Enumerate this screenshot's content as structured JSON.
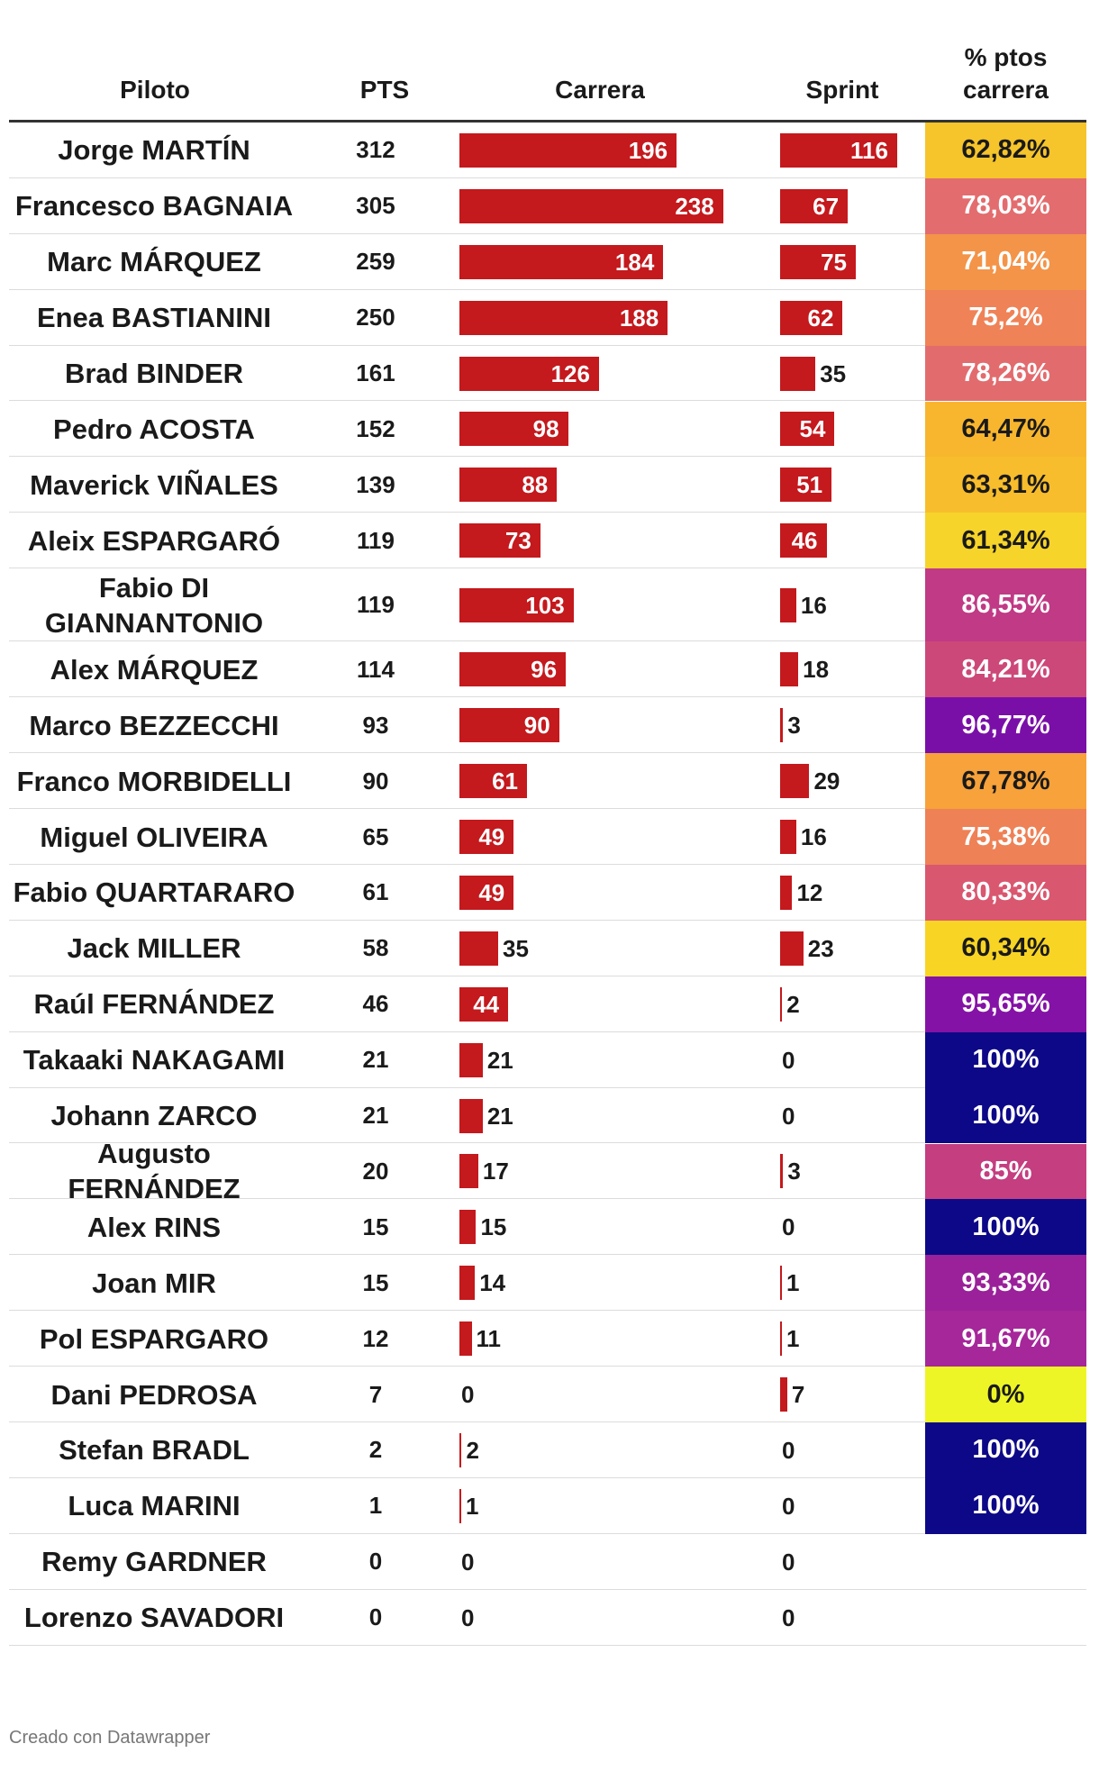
{
  "headers": {
    "piloto": "Piloto",
    "pts": "PTS",
    "carrera": "Carrera",
    "sprint": "Sprint",
    "pct_line1": "% ptos",
    "pct_line2": "carrera"
  },
  "footer": "Creado con Datawrapper",
  "colors": {
    "bar": "#c4191d",
    "header_rule": "#333333",
    "row_separator": "#dcdcdc"
  },
  "chart_data": {
    "type": "table",
    "columns": [
      "Piloto",
      "PTS",
      "Carrera",
      "Sprint",
      "% ptos carrera"
    ],
    "bar_columns": [
      "Carrera",
      "Sprint"
    ],
    "rows": [
      {
        "piloto": "Jorge MARTÍN",
        "pts": 312,
        "carrera": 196,
        "sprint": 116,
        "pct": "62,82%",
        "pct_color": "#f6c42b"
      },
      {
        "piloto": "Francesco BAGNAIA",
        "pts": 305,
        "carrera": 238,
        "sprint": 67,
        "pct": "78,03%",
        "pct_color": "#e36c6e"
      },
      {
        "piloto": "Marc MÁRQUEZ",
        "pts": 259,
        "carrera": 184,
        "sprint": 75,
        "pct": "71,04%",
        "pct_color": "#f39448"
      },
      {
        "piloto": "Enea BASTIANINI",
        "pts": 250,
        "carrera": 188,
        "sprint": 62,
        "pct": "75,2%",
        "pct_color": "#ef8257"
      },
      {
        "piloto": "Brad BINDER",
        "pts": 161,
        "carrera": 126,
        "sprint": 35,
        "pct": "78,26%",
        "pct_color": "#e26b6e"
      },
      {
        "piloto": "Pedro ACOSTA",
        "pts": 152,
        "carrera": 98,
        "sprint": 54,
        "pct": "64,47%",
        "pct_color": "#f8b62e"
      },
      {
        "piloto": "Maverick VIÑALES",
        "pts": 139,
        "carrera": 88,
        "sprint": 51,
        "pct": "63,31%",
        "pct_color": "#f8bd2c"
      },
      {
        "piloto": "Aleix ESPARGARÓ",
        "pts": 119,
        "carrera": 73,
        "sprint": 46,
        "pct": "61,34%",
        "pct_color": "#f6d42a"
      },
      {
        "piloto": "Fabio DI GIANNANTONIO",
        "pts": 119,
        "carrera": 103,
        "sprint": 16,
        "pct": "86,55%",
        "pct_color": "#c03a85"
      },
      {
        "piloto": "Alex MÁRQUEZ",
        "pts": 114,
        "carrera": 96,
        "sprint": 18,
        "pct": "84,21%",
        "pct_color": "#cc4879"
      },
      {
        "piloto": "Marco BEZZECCHI",
        "pts": 93,
        "carrera": 90,
        "sprint": 3,
        "pct": "96,77%",
        "pct_color": "#7a0fa8"
      },
      {
        "piloto": "Franco MORBIDELLI",
        "pts": 90,
        "carrera": 61,
        "sprint": 29,
        "pct": "67,78%",
        "pct_color": "#f7a23a"
      },
      {
        "piloto": "Miguel OLIVEIRA",
        "pts": 65,
        "carrera": 49,
        "sprint": 16,
        "pct": "75,38%",
        "pct_color": "#ee8156"
      },
      {
        "piloto": "Fabio QUARTARARO",
        "pts": 61,
        "carrera": 49,
        "sprint": 12,
        "pct": "80,33%",
        "pct_color": "#d9576f"
      },
      {
        "piloto": "Jack MILLER",
        "pts": 58,
        "carrera": 35,
        "sprint": 23,
        "pct": "60,34%",
        "pct_color": "#f8d524"
      },
      {
        "piloto": "Raúl FERNÁNDEZ",
        "pts": 46,
        "carrera": 44,
        "sprint": 2,
        "pct": "95,65%",
        "pct_color": "#8512a6"
      },
      {
        "piloto": "Takaaki NAKAGAMI",
        "pts": 21,
        "carrera": 21,
        "sprint": 0,
        "pct": "100%",
        "pct_color": "#0d0887"
      },
      {
        "piloto": "Johann ZARCO",
        "pts": 21,
        "carrera": 21,
        "sprint": 0,
        "pct": "100%",
        "pct_color": "#0d0887"
      },
      {
        "piloto": "Augusto FERNÁNDEZ",
        "pts": 20,
        "carrera": 17,
        "sprint": 3,
        "pct": "85%",
        "pct_color": "#c43e80"
      },
      {
        "piloto": "Alex RINS",
        "pts": 15,
        "carrera": 15,
        "sprint": 0,
        "pct": "100%",
        "pct_color": "#0d0887"
      },
      {
        "piloto": "Joan MIR",
        "pts": 15,
        "carrera": 14,
        "sprint": 1,
        "pct": "93,33%",
        "pct_color": "#9a2199"
      },
      {
        "piloto": "Pol ESPARGARO",
        "pts": 12,
        "carrera": 11,
        "sprint": 1,
        "pct": "91,67%",
        "pct_color": "#a5279a"
      },
      {
        "piloto": "Dani PEDROSA",
        "pts": 7,
        "carrera": 0,
        "sprint": 7,
        "pct": "0%",
        "pct_color": "#eef526"
      },
      {
        "piloto": "Stefan BRADL",
        "pts": 2,
        "carrera": 2,
        "sprint": 0,
        "pct": "100%",
        "pct_color": "#0d0887"
      },
      {
        "piloto": "Luca MARINI",
        "pts": 1,
        "carrera": 1,
        "sprint": 0,
        "pct": "100%",
        "pct_color": "#0d0887"
      },
      {
        "piloto": "Remy GARDNER",
        "pts": 0,
        "carrera": 0,
        "sprint": 0,
        "pct": "",
        "pct_color": ""
      },
      {
        "piloto": "Lorenzo SAVADORI",
        "pts": 0,
        "carrera": 0,
        "sprint": 0,
        "pct": "",
        "pct_color": ""
      }
    ]
  }
}
